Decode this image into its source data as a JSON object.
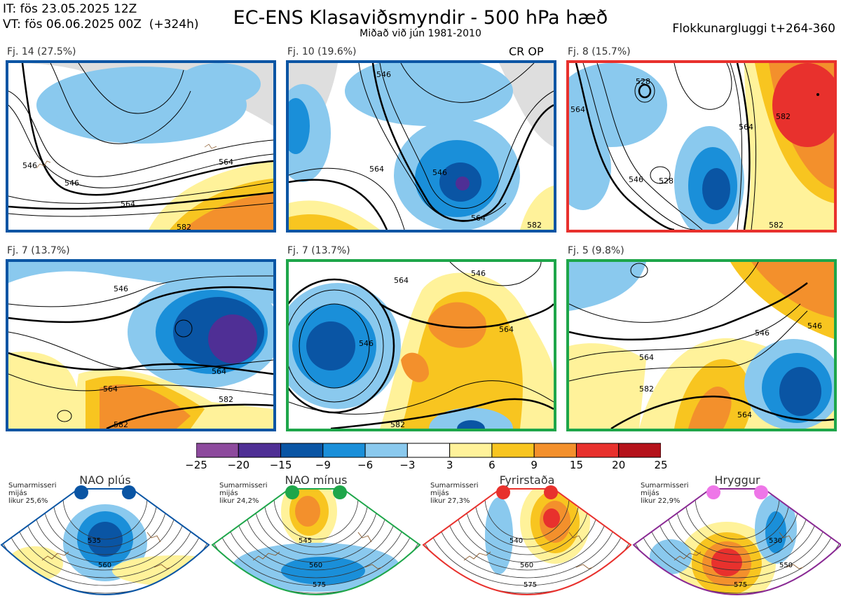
{
  "header": {
    "it": "IT: fös 23.05.2025 12Z",
    "vt": "VT: fös 06.06.2025 00Z  (+324h)",
    "title": "EC-ENS Klasaviðsmyndir - 500 hPa hæð",
    "subtitle": "Miðað við jún 1981-2010",
    "window": "Flokkunargluggi t+264-360"
  },
  "panels": [
    {
      "label": "Fj. 14 (27.5%)",
      "frame_color": "#0a55a4",
      "extra": "",
      "contours": [
        "546",
        "546",
        "564",
        "564",
        "582"
      ]
    },
    {
      "label": "Fj. 10 (19.6%)",
      "frame_color": "#0a55a4",
      "extra": "CR OP",
      "contours": [
        "546",
        "546",
        "564",
        "564",
        "582"
      ]
    },
    {
      "label": "Fj. 8 (15.7%)",
      "frame_color": "#e8312d",
      "extra": "",
      "contours": [
        "528",
        "528",
        "546",
        "564",
        "564",
        "582",
        "582"
      ]
    },
    {
      "label": "Fj. 7 (13.7%)",
      "frame_color": "#0a55a4",
      "extra": "",
      "contours": [
        "546",
        "564",
        "564",
        "582",
        "582"
      ]
    },
    {
      "label": "Fj. 7 (13.7%)",
      "frame_color": "#1ea64a",
      "extra": "",
      "contours": [
        "546",
        "546",
        "564",
        "564",
        "582"
      ]
    },
    {
      "label": "Fj. 5 (9.8%)",
      "frame_color": "#1ea64a",
      "extra": "",
      "contours": [
        "546",
        "546",
        "564",
        "564",
        "582"
      ]
    }
  ],
  "colorbar": {
    "ticks": [
      "−25",
      "−20",
      "−15",
      "−9",
      "−6",
      "−3",
      "3",
      "6",
      "9",
      "15",
      "20",
      "25"
    ],
    "colors": [
      "#8d4a9d",
      "#4f2f95",
      "#0a55a4",
      "#1a8fd9",
      "#8ac9ee",
      "#ffffff",
      "#fff29a",
      "#f8c520",
      "#f3902c",
      "#e8312d",
      "#b5121b"
    ]
  },
  "regimes": [
    {
      "name": "NAO plús",
      "note": "Sumarmisseri\nmijás\nlikur 25,6%",
      "dot_color": "#0a55a4",
      "frame_color": "#0a55a4",
      "contours": [
        "535",
        "560"
      ]
    },
    {
      "name": "NAO mínus",
      "note": "Sumarmisseri\nmijás\nlikur 24,2%",
      "dot_color": "#1ea64a",
      "frame_color": "#1ea64a",
      "contours": [
        "545",
        "560",
        "575"
      ]
    },
    {
      "name": "Fyrirstaða",
      "note": "Sumarmisseri\nmijás\nlikur 27,3%",
      "dot_color": "#e8312d",
      "frame_color": "#e8312d",
      "contours": [
        "540",
        "560",
        "575"
      ]
    },
    {
      "name": "Hryggur",
      "note": "Sumarmisseri\nmijás\nlikur 22,9%",
      "dot_color": "#ee76e8",
      "frame_color": "#8a2a94",
      "contours": [
        "530",
        "550",
        "575"
      ]
    }
  ]
}
